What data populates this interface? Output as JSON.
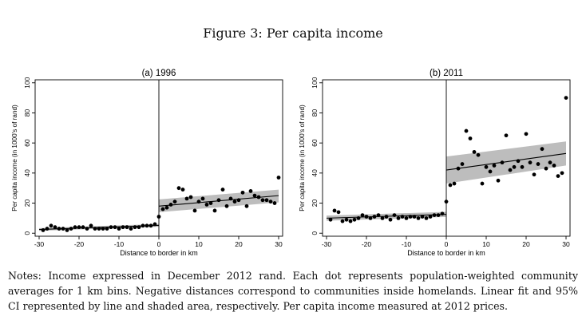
{
  "figure": {
    "title": "Figure 3: Per capita income",
    "notes": "Notes: Income expressed in December 2012 rand. Each dot represents population-weighted community averages for 1 km bins. Negative distances correspond to communities inside homelands. Linear fit and 95% CI represented by line and shaded area, respectively. Per capita income measured at 2012 prices."
  },
  "chart_data": [
    {
      "type": "scatter",
      "title": "(a) 1996",
      "xlabel": "Distance to border in km",
      "ylabel": "Per capita income (in 1000's of rand)",
      "xlim": [
        -31,
        31
      ],
      "ylim": [
        -2,
        102
      ],
      "xticks": [
        -30,
        -20,
        -10,
        0,
        10,
        20,
        30
      ],
      "yticks": [
        0,
        20,
        40,
        60,
        80,
        100
      ],
      "cutoff": 0,
      "points": [
        [
          -29,
          2
        ],
        [
          -28,
          3
        ],
        [
          -27,
          5
        ],
        [
          -26,
          4
        ],
        [
          -25,
          3
        ],
        [
          -24,
          3
        ],
        [
          -23,
          2
        ],
        [
          -22,
          3
        ],
        [
          -21,
          4
        ],
        [
          -20,
          4
        ],
        [
          -19,
          4
        ],
        [
          -18,
          3
        ],
        [
          -17,
          5
        ],
        [
          -16,
          3
        ],
        [
          -15,
          3
        ],
        [
          -14,
          3
        ],
        [
          -13,
          3
        ],
        [
          -12,
          4
        ],
        [
          -11,
          4
        ],
        [
          -10,
          3
        ],
        [
          -9,
          4
        ],
        [
          -8,
          4
        ],
        [
          -7,
          3
        ],
        [
          -6,
          4
        ],
        [
          -5,
          4
        ],
        [
          -4,
          5
        ],
        [
          -3,
          5
        ],
        [
          -2,
          5
        ],
        [
          -1,
          6
        ],
        [
          0,
          11
        ],
        [
          1,
          16
        ],
        [
          2,
          17
        ],
        [
          3,
          19
        ],
        [
          4,
          21
        ],
        [
          5,
          30
        ],
        [
          6,
          29
        ],
        [
          7,
          23
        ],
        [
          8,
          24
        ],
        [
          9,
          15
        ],
        [
          10,
          21
        ],
        [
          11,
          23
        ],
        [
          12,
          19
        ],
        [
          13,
          20
        ],
        [
          14,
          15
        ],
        [
          15,
          22
        ],
        [
          16,
          29
        ],
        [
          17,
          18
        ],
        [
          18,
          23
        ],
        [
          19,
          21
        ],
        [
          20,
          22
        ],
        [
          21,
          27
        ],
        [
          22,
          18
        ],
        [
          23,
          28
        ],
        [
          24,
          25
        ],
        [
          25,
          24
        ],
        [
          26,
          22
        ],
        [
          27,
          22
        ],
        [
          28,
          21
        ],
        [
          29,
          20
        ],
        [
          30,
          37
        ]
      ],
      "fits": [
        {
          "side": "left",
          "x": [
            -30,
            0
          ],
          "y": [
            2.5,
            5.2
          ],
          "ci_low": [
            1.6,
            4.3
          ],
          "ci_high": [
            3.4,
            6.1
          ]
        },
        {
          "side": "right",
          "x": [
            0,
            30
          ],
          "y": [
            18,
            25
          ],
          "ci_low": [
            14,
            20.5
          ],
          "ci_high": [
            22.5,
            29
          ]
        }
      ]
    },
    {
      "type": "scatter",
      "title": "(b) 2011",
      "xlabel": "Distance to border in km",
      "ylabel": "Per capita income (in 1000's of rand)",
      "xlim": [
        -31,
        31
      ],
      "ylim": [
        -2,
        102
      ],
      "xticks": [
        -30,
        -20,
        -10,
        0,
        10,
        20,
        30
      ],
      "yticks": [
        0,
        20,
        40,
        60,
        80,
        100
      ],
      "cutoff": 0,
      "points": [
        [
          -29,
          9
        ],
        [
          -28,
          15
        ],
        [
          -27,
          14
        ],
        [
          -26,
          8
        ],
        [
          -25,
          9
        ],
        [
          -24,
          8
        ],
        [
          -23,
          9
        ],
        [
          -22,
          10
        ],
        [
          -21,
          12
        ],
        [
          -20,
          11
        ],
        [
          -19,
          10
        ],
        [
          -18,
          11
        ],
        [
          -17,
          12
        ],
        [
          -16,
          10
        ],
        [
          -15,
          11
        ],
        [
          -14,
          9
        ],
        [
          -13,
          12
        ],
        [
          -12,
          10
        ],
        [
          -11,
          11
        ],
        [
          -10,
          10
        ],
        [
          -9,
          11
        ],
        [
          -8,
          11
        ],
        [
          -7,
          10
        ],
        [
          -6,
          11
        ],
        [
          -5,
          10
        ],
        [
          -4,
          11
        ],
        [
          -3,
          12
        ],
        [
          -2,
          12
        ],
        [
          -1,
          13
        ],
        [
          0,
          21
        ],
        [
          1,
          32
        ],
        [
          2,
          33
        ],
        [
          3,
          43
        ],
        [
          4,
          46
        ],
        [
          5,
          68
        ],
        [
          6,
          63
        ],
        [
          7,
          54
        ],
        [
          8,
          52
        ],
        [
          9,
          33
        ],
        [
          10,
          44
        ],
        [
          11,
          41
        ],
        [
          12,
          45
        ],
        [
          13,
          35
        ],
        [
          14,
          47
        ],
        [
          15,
          65
        ],
        [
          16,
          42
        ],
        [
          17,
          44
        ],
        [
          18,
          48
        ],
        [
          19,
          44
        ],
        [
          20,
          66
        ],
        [
          21,
          47
        ],
        [
          22,
          39
        ],
        [
          23,
          46
        ],
        [
          24,
          56
        ],
        [
          25,
          43
        ],
        [
          26,
          47
        ],
        [
          27,
          45
        ],
        [
          28,
          38
        ],
        [
          29,
          40
        ],
        [
          30,
          90
        ]
      ],
      "fits": [
        {
          "side": "left",
          "x": [
            -30,
            0
          ],
          "y": [
            10,
            12.5
          ],
          "ci_low": [
            8.3,
            10.8
          ],
          "ci_high": [
            11.7,
            14.2
          ]
        },
        {
          "side": "right",
          "x": [
            0,
            30
          ],
          "y": [
            42,
            53
          ],
          "ci_low": [
            33,
            45
          ],
          "ci_high": [
            51,
            61
          ]
        }
      ]
    }
  ]
}
